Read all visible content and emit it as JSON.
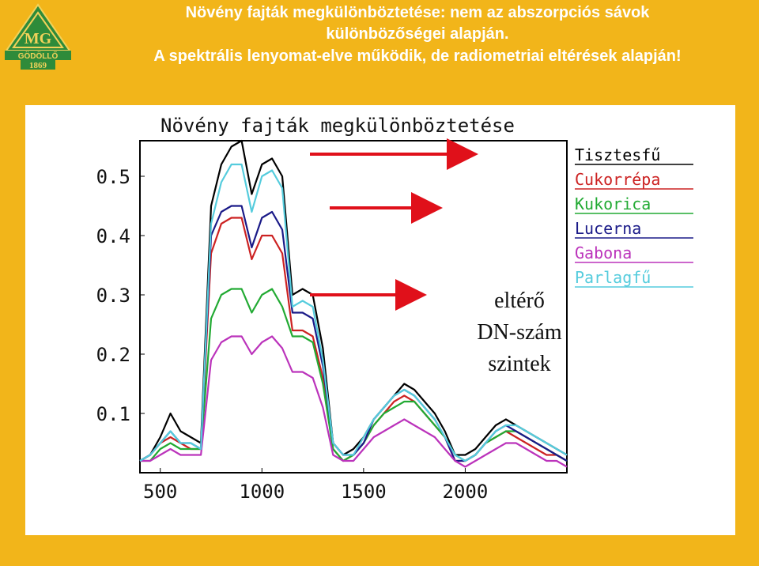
{
  "header": {
    "title_line1": "Növény fajták megkülönböztetése: nem az abszorpciós sávok",
    "title_line2": "különbözőségei alapján.",
    "title_line3": "A spektrális lenyomat-elve működik, de radiometriai eltérések alapján!"
  },
  "logo": {
    "name": "GÖDÖLLŐ",
    "year": "1869",
    "color": "#2e8b3a"
  },
  "annotation": {
    "line1": "eltérő",
    "line2": "DN-szám",
    "line3": "szintek",
    "arrow_color": "#e0101a"
  },
  "chart_data": {
    "type": "line",
    "title": "Növény fajták megkülönböztetése",
    "xlabel": "",
    "ylabel": "",
    "xlim": [
      400,
      2500
    ],
    "ylim": [
      0,
      0.56
    ],
    "xticks": [
      "500",
      "1000",
      "1500",
      "2000"
    ],
    "yticks": [
      "0.1",
      "0.2",
      "0.3",
      "0.4",
      "0.5"
    ],
    "legend_position": "right",
    "series": [
      {
        "name": "Tisztesfű",
        "color": "#000000",
        "x": [
          400,
          450,
          500,
          550,
          600,
          650,
          700,
          750,
          800,
          850,
          900,
          950,
          1000,
          1050,
          1100,
          1150,
          1200,
          1250,
          1300,
          1350,
          1400,
          1450,
          1500,
          1550,
          1600,
          1650,
          1700,
          1750,
          1800,
          1850,
          1900,
          1950,
          2000,
          2050,
          2100,
          2150,
          2200,
          2250,
          2300,
          2350,
          2400,
          2450,
          2500
        ],
        "y": [
          0.02,
          0.03,
          0.06,
          0.1,
          0.07,
          0.06,
          0.05,
          0.45,
          0.52,
          0.55,
          0.56,
          0.47,
          0.52,
          0.53,
          0.5,
          0.3,
          0.31,
          0.3,
          0.21,
          0.05,
          0.03,
          0.04,
          0.06,
          0.09,
          0.11,
          0.13,
          0.15,
          0.14,
          0.12,
          0.1,
          0.07,
          0.03,
          0.03,
          0.04,
          0.06,
          0.08,
          0.09,
          0.08,
          0.07,
          0.06,
          0.05,
          0.04,
          0.03
        ]
      },
      {
        "name": "Cukorrépa",
        "color": "#cc2222",
        "x": [
          400,
          450,
          500,
          550,
          600,
          650,
          700,
          750,
          800,
          850,
          900,
          950,
          1000,
          1050,
          1100,
          1150,
          1200,
          1250,
          1300,
          1350,
          1400,
          1450,
          1500,
          1550,
          1600,
          1650,
          1700,
          1750,
          1800,
          1850,
          1900,
          1950,
          2000,
          2050,
          2100,
          2150,
          2200,
          2250,
          2300,
          2350,
          2400,
          2450,
          2500
        ],
        "y": [
          0.02,
          0.03,
          0.05,
          0.06,
          0.05,
          0.04,
          0.04,
          0.37,
          0.42,
          0.43,
          0.43,
          0.36,
          0.4,
          0.4,
          0.37,
          0.24,
          0.24,
          0.23,
          0.16,
          0.04,
          0.02,
          0.03,
          0.05,
          0.08,
          0.1,
          0.12,
          0.13,
          0.12,
          0.1,
          0.08,
          0.06,
          0.02,
          0.02,
          0.03,
          0.05,
          0.06,
          0.07,
          0.06,
          0.05,
          0.04,
          0.03,
          0.03,
          0.02
        ]
      },
      {
        "name": "Kukorica",
        "color": "#22aa33",
        "x": [
          400,
          450,
          500,
          550,
          600,
          650,
          700,
          750,
          800,
          850,
          900,
          950,
          1000,
          1050,
          1100,
          1150,
          1200,
          1250,
          1300,
          1350,
          1400,
          1450,
          1500,
          1550,
          1600,
          1650,
          1700,
          1750,
          1800,
          1850,
          1900,
          1950,
          2000,
          2050,
          2100,
          2150,
          2200,
          2250,
          2300,
          2350,
          2400,
          2450,
          2500
        ],
        "y": [
          0.02,
          0.02,
          0.04,
          0.05,
          0.04,
          0.04,
          0.04,
          0.26,
          0.3,
          0.31,
          0.31,
          0.27,
          0.3,
          0.31,
          0.28,
          0.23,
          0.23,
          0.22,
          0.15,
          0.04,
          0.02,
          0.03,
          0.05,
          0.08,
          0.1,
          0.11,
          0.12,
          0.12,
          0.1,
          0.08,
          0.06,
          0.03,
          0.02,
          0.03,
          0.05,
          0.06,
          0.07,
          0.07,
          0.06,
          0.05,
          0.04,
          0.03,
          0.02
        ]
      },
      {
        "name": "Lucerna",
        "color": "#1a1a88",
        "x": [
          400,
          450,
          500,
          550,
          600,
          650,
          700,
          750,
          800,
          850,
          900,
          950,
          1000,
          1050,
          1100,
          1150,
          1200,
          1250,
          1300,
          1350,
          1400,
          1450,
          1500,
          1550,
          1600,
          1650,
          1700,
          1750,
          1800,
          1850,
          1900,
          1950,
          2000,
          2050,
          2100,
          2150,
          2200,
          2250,
          2300,
          2350,
          2400,
          2450,
          2500
        ],
        "y": [
          0.02,
          0.03,
          0.05,
          0.07,
          0.05,
          0.05,
          0.04,
          0.4,
          0.44,
          0.45,
          0.45,
          0.38,
          0.43,
          0.44,
          0.41,
          0.27,
          0.27,
          0.26,
          0.18,
          0.05,
          0.03,
          0.03,
          0.05,
          0.09,
          0.11,
          0.13,
          0.14,
          0.13,
          0.11,
          0.09,
          0.06,
          0.02,
          0.02,
          0.03,
          0.05,
          0.07,
          0.08,
          0.07,
          0.06,
          0.05,
          0.04,
          0.03,
          0.02
        ]
      },
      {
        "name": "Gabona",
        "color": "#bb33bb",
        "x": [
          400,
          450,
          500,
          550,
          600,
          650,
          700,
          750,
          800,
          850,
          900,
          950,
          1000,
          1050,
          1100,
          1150,
          1200,
          1250,
          1300,
          1350,
          1400,
          1450,
          1500,
          1550,
          1600,
          1650,
          1700,
          1750,
          1800,
          1850,
          1900,
          1950,
          2000,
          2050,
          2100,
          2150,
          2200,
          2250,
          2300,
          2350,
          2400,
          2450,
          2500
        ],
        "y": [
          0.02,
          0.02,
          0.03,
          0.04,
          0.03,
          0.03,
          0.03,
          0.19,
          0.22,
          0.23,
          0.23,
          0.2,
          0.22,
          0.23,
          0.21,
          0.17,
          0.17,
          0.16,
          0.11,
          0.03,
          0.02,
          0.02,
          0.04,
          0.06,
          0.07,
          0.08,
          0.09,
          0.08,
          0.07,
          0.06,
          0.04,
          0.02,
          0.01,
          0.02,
          0.03,
          0.04,
          0.05,
          0.05,
          0.04,
          0.03,
          0.02,
          0.02,
          0.01
        ]
      },
      {
        "name": "Parlagfű",
        "color": "#55ccdd",
        "x": [
          400,
          450,
          500,
          550,
          600,
          650,
          700,
          750,
          800,
          850,
          900,
          950,
          1000,
          1050,
          1100,
          1150,
          1200,
          1250,
          1300,
          1350,
          1400,
          1450,
          1500,
          1550,
          1600,
          1650,
          1700,
          1750,
          1800,
          1850,
          1900,
          1950,
          2000,
          2050,
          2100,
          2150,
          2200,
          2250,
          2300,
          2350,
          2400,
          2450,
          2500
        ],
        "y": [
          0.02,
          0.03,
          0.05,
          0.07,
          0.05,
          0.05,
          0.04,
          0.42,
          0.49,
          0.52,
          0.52,
          0.44,
          0.5,
          0.51,
          0.48,
          0.28,
          0.29,
          0.28,
          0.19,
          0.05,
          0.03,
          0.03,
          0.06,
          0.09,
          0.11,
          0.13,
          0.14,
          0.13,
          0.11,
          0.09,
          0.06,
          0.03,
          0.02,
          0.03,
          0.05,
          0.07,
          0.08,
          0.08,
          0.07,
          0.06,
          0.05,
          0.04,
          0.03
        ]
      }
    ]
  }
}
